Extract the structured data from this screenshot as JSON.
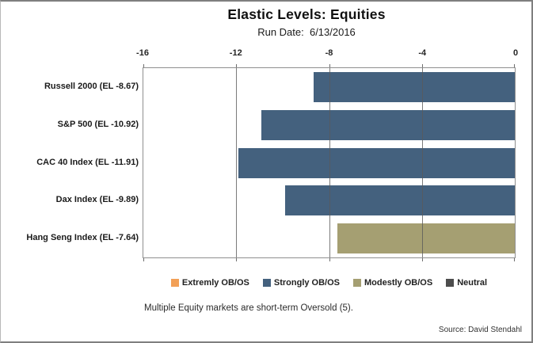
{
  "header": {
    "title": "Elastic Levels: Equities",
    "subtitle": "Run Date:  6/13/2016"
  },
  "footer": {
    "caption": "Multiple Equity markets are short-term Oversold (5).",
    "source": "Source: David Stendahl"
  },
  "colors": {
    "strongly_blue": "#44617E",
    "modestly_khaki": "#A59F72",
    "extremly_orange": "#F2A057",
    "neutral_gray": "#4D4D4D",
    "gridline": "#8F8F8F",
    "frame_border": "#7F7F7F"
  },
  "chart_data": {
    "type": "bar",
    "orientation": "horizontal",
    "title": "Elastic Levels: Equities",
    "subtitle": "Run Date:  6/13/2016",
    "categories": [
      "Russell 2000 (EL -8.67)",
      "S&P 500 (EL -10.92)",
      "CAC 40 Index (EL -11.91)",
      "Dax Index (EL -9.89)",
      "Hang Seng Index (EL -7.64)"
    ],
    "values": [
      -8.67,
      -10.92,
      -11.91,
      -9.89,
      -7.64
    ],
    "bar_series": [
      "Strongly OB/OS",
      "Strongly OB/OS",
      "Strongly OB/OS",
      "Strongly OB/OS",
      "Modestly OB/OS"
    ],
    "bar_colors": [
      "#44617E",
      "#44617E",
      "#44617E",
      "#44617E",
      "#A59F72"
    ],
    "xlim": [
      -16,
      0
    ],
    "x_ticks": [
      -16,
      -12,
      -8,
      -4,
      0
    ],
    "grid": true,
    "legend_position": "bottom",
    "legend": [
      {
        "label": "Extremly OB/OS",
        "color": "#F2A057"
      },
      {
        "label": "Strongly OB/OS",
        "color": "#44617E"
      },
      {
        "label": "Modestly OB/OS",
        "color": "#A59F72"
      },
      {
        "label": "Neutral",
        "color": "#4D4D4D"
      }
    ]
  }
}
